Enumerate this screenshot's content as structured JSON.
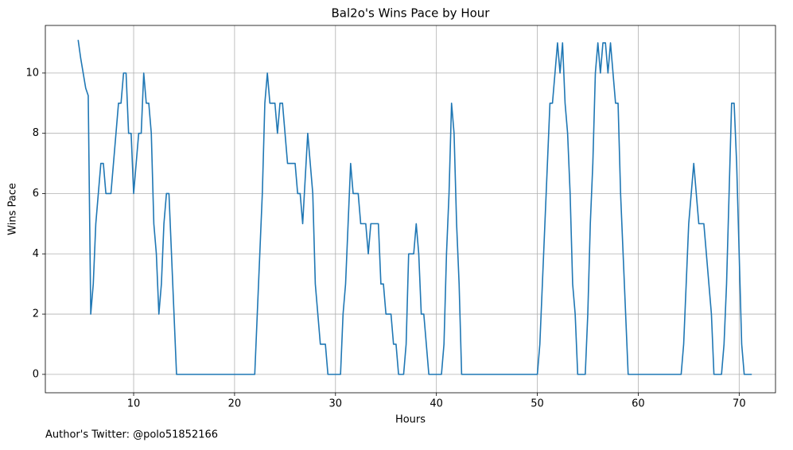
{
  "chart_data": {
    "type": "line",
    "title": "Bal2o's Wins Pace by Hour",
    "xlabel": "Hours",
    "ylabel": "Wins Pace",
    "footer": "Author's Twitter: @polo51852166",
    "series": [
      {
        "name": "Wins Pace",
        "color": "#1f77b4",
        "x": [
          4.5,
          4.75,
          5,
          5.25,
          5.5,
          5.75,
          6,
          6.25,
          6.5,
          6.75,
          7,
          7.25,
          7.5,
          7.75,
          8,
          8.25,
          8.5,
          8.75,
          9,
          9.25,
          9.5,
          9.75,
          10,
          10.25,
          10.5,
          10.75,
          11,
          11.25,
          11.5,
          11.75,
          12,
          12.25,
          12.5,
          12.75,
          13,
          13.25,
          13.5,
          13.75,
          14,
          14.25,
          22,
          22.25,
          22.5,
          22.75,
          23,
          23.25,
          23.5,
          23.75,
          24,
          24.25,
          24.5,
          24.75,
          25,
          25.25,
          25.5,
          25.75,
          26,
          26.25,
          26.5,
          26.75,
          27,
          27.25,
          27.5,
          27.75,
          28,
          28.25,
          28.5,
          28.75,
          29,
          29.25,
          30.5,
          30.75,
          31,
          31.25,
          31.5,
          31.75,
          32,
          32.25,
          32.5,
          32.75,
          33,
          33.25,
          33.5,
          33.75,
          34,
          34.25,
          34.5,
          34.75,
          35,
          35.25,
          35.5,
          35.75,
          36,
          36.25,
          36.75,
          37,
          37.25,
          37.5,
          37.75,
          38,
          38.25,
          38.5,
          38.75,
          39,
          39.25,
          40.5,
          40.75,
          41,
          41.25,
          41.5,
          41.75,
          42,
          42.25,
          42.5,
          50,
          50.25,
          50.5,
          50.75,
          51,
          51.25,
          51.5,
          51.75,
          52,
          52.25,
          52.5,
          52.75,
          53,
          53.25,
          53.5,
          53.75,
          54,
          54.75,
          55,
          55.25,
          55.5,
          55.75,
          56,
          56.25,
          56.5,
          56.75,
          57,
          57.25,
          57.5,
          57.75,
          58,
          58.25,
          58.5,
          58.75,
          59,
          64.25,
          64.5,
          64.75,
          65,
          65.25,
          65.5,
          65.75,
          66,
          66.25,
          66.5,
          66.75,
          67,
          67.25,
          67.5,
          68.25,
          68.5,
          68.75,
          69,
          69.25,
          69.5,
          69.75,
          70,
          70.25,
          70.5,
          71.25
        ],
        "values": [
          11.1,
          10.5,
          10,
          9.5,
          9.25,
          2,
          3,
          5,
          6,
          7,
          7,
          6,
          6,
          6,
          7,
          8,
          9,
          9,
          10,
          10,
          8,
          8,
          6,
          7,
          8,
          8,
          10,
          9,
          9,
          8,
          5,
          4,
          2,
          3,
          5,
          6,
          6,
          4,
          2,
          0,
          0,
          2,
          4,
          6,
          9,
          10,
          9,
          9,
          9,
          8,
          9,
          9,
          8,
          7,
          7,
          7,
          7,
          6,
          6,
          5,
          6.5,
          8,
          7,
          6,
          3,
          2,
          1,
          1,
          1,
          0,
          0,
          2,
          3,
          5,
          7,
          6,
          6,
          6,
          5,
          5,
          5,
          4,
          5,
          5,
          5,
          5,
          3,
          3,
          2,
          2,
          2,
          1,
          1,
          0,
          0,
          1,
          4,
          4,
          4,
          5,
          4,
          2,
          2,
          1,
          0,
          0,
          1,
          4,
          6,
          9,
          8,
          5,
          3,
          0,
          0,
          1,
          3,
          5,
          7,
          9,
          9,
          10,
          11,
          10,
          11,
          9,
          8,
          6,
          3,
          2,
          0,
          0,
          2,
          5,
          7,
          10,
          11,
          10,
          11,
          11,
          10,
          11,
          10,
          9,
          9,
          6,
          4,
          2,
          0,
          0,
          1,
          3,
          5,
          6,
          7,
          6,
          5,
          5,
          5,
          4,
          3,
          2,
          0,
          0,
          1,
          3,
          6,
          9,
          9,
          7,
          4,
          1,
          0,
          0
        ]
      }
    ],
    "xlim": [
      1.25,
      73.6
    ],
    "ylim": [
      -0.61,
      11.58
    ],
    "xticks": [
      10,
      20,
      30,
      40,
      50,
      60,
      70
    ],
    "yticks": [
      0,
      2,
      4,
      6,
      8,
      10
    ],
    "grid": true
  }
}
